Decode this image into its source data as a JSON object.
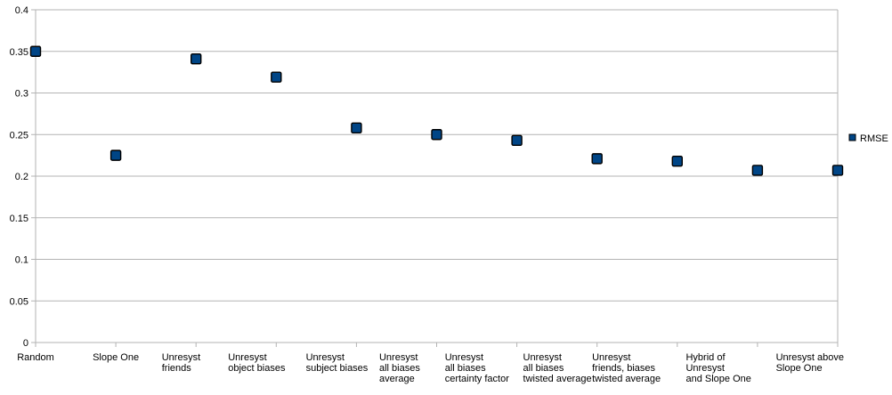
{
  "chart_data": {
    "type": "scatter",
    "title": "",
    "xlabel": "",
    "ylabel": "",
    "ylim": [
      0,
      0.4
    ],
    "y_ticks": [
      0,
      0.05,
      0.1,
      0.15,
      0.2,
      0.25,
      0.3,
      0.35,
      0.4
    ],
    "y_tick_labels": [
      "0",
      "0.05",
      "0.1",
      "0.15",
      "0.2",
      "0.25",
      "0.3",
      "0.35",
      "0.4"
    ],
    "grid": true,
    "legend_position": "right",
    "categories": [
      [
        "Random"
      ],
      [
        "Slope One"
      ],
      [
        "Unresyst",
        "friends"
      ],
      [
        "Unresyst",
        "object biases"
      ],
      [
        "Unresyst",
        "subject biases"
      ],
      [
        "Unresyst",
        "all biases",
        "average"
      ],
      [
        "Unresyst",
        "all biases",
        "certainty factor"
      ],
      [
        "Unresyst",
        "all biases",
        "twisted average"
      ],
      [
        "Unresyst",
        "friends, biases",
        "twisted average"
      ],
      [
        "Hybrid of",
        "Unresyst",
        "and  Slope One"
      ],
      [
        "Unresyst above",
        "Slope One"
      ]
    ],
    "series": [
      {
        "name": "RMSE",
        "color": "#004586",
        "values": [
          0.35,
          0.225,
          0.341,
          0.319,
          0.258,
          0.25,
          0.243,
          0.221,
          0.218,
          0.207,
          0.207
        ]
      }
    ]
  }
}
